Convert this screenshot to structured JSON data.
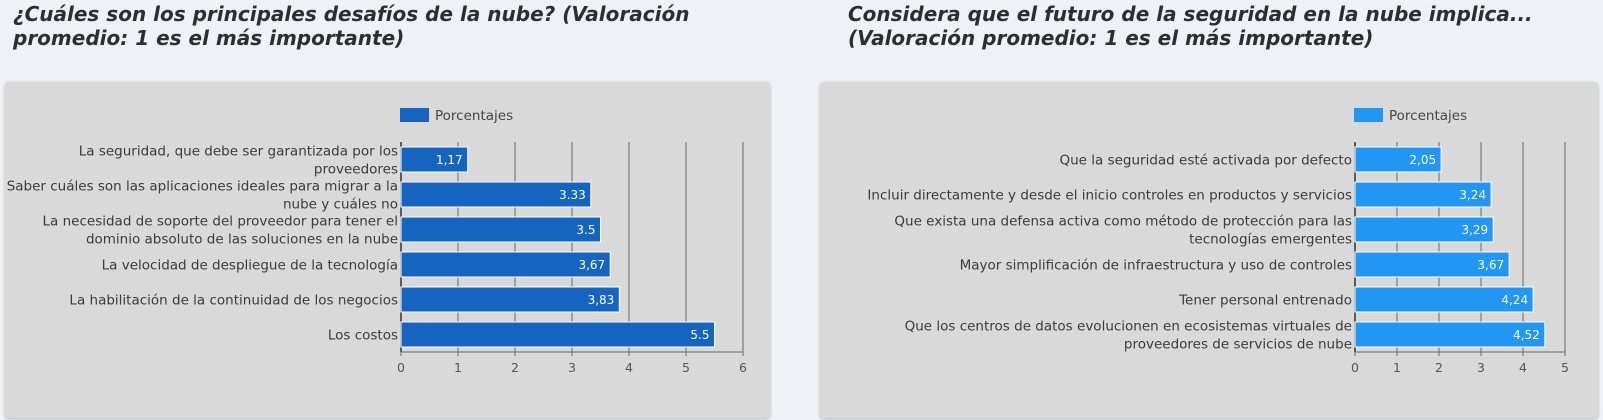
{
  "chart_data": [
    {
      "type": "bar",
      "orientation": "horizontal",
      "title": "¿Cuáles son los principales desafíos de la nube? (Valoración promedio: 1 es el más importante)",
      "categories": [
        [
          "La seguridad, que debe ser garantizada por los",
          "proveedores"
        ],
        [
          "Saber cuáles son las aplicaciones ideales para migrar a la",
          "nube y cuáles no"
        ],
        [
          "La necesidad de soporte del proveedor para tener el",
          "dominio absoluto de las soluciones en la nube"
        ],
        [
          "La velocidad de despliegue de la tecnología"
        ],
        [
          "La habilitación de la continuidad de los negocios"
        ],
        [
          "Los costos"
        ]
      ],
      "values": [
        1.17,
        3.33,
        3.5,
        3.67,
        3.83,
        5.5
      ],
      "value_labels": [
        "1,17",
        "3.33",
        "3.5",
        "3,67",
        "3,83",
        "5.5"
      ],
      "series": [
        {
          "name": "Porcentajes",
          "values": [
            1.17,
            3.33,
            3.5,
            3.67,
            3.83,
            5.5
          ]
        }
      ],
      "xlim": [
        0,
        6
      ],
      "ticks": [
        "0",
        "1",
        "2",
        "3",
        "4",
        "5",
        "6"
      ],
      "grid": true,
      "legend": "top-center",
      "color": "#1565c0"
    },
    {
      "type": "bar",
      "orientation": "horizontal",
      "title": "Considera que el futuro de la seguridad en la nube implica... (Valoración promedio: 1 es el más importante)",
      "categories": [
        [
          "Que la seguridad esté activada por defecto"
        ],
        [
          "Incluir directamente y desde el inicio controles en productos y servicios"
        ],
        [
          "Que exista una defensa activa como método de protección para las",
          "tecnologías emergentes"
        ],
        [
          "Mayor simplificación de infraestructura y uso de controles"
        ],
        [
          "Tener personal entrenado"
        ],
        [
          "Que los centros de datos evolucionen en ecosistemas virtuales de",
          "proveedores de servicios de nube"
        ]
      ],
      "values": [
        2.05,
        3.24,
        3.29,
        3.67,
        4.24,
        4.52
      ],
      "value_labels": [
        "2,05",
        "3,24",
        "3,29",
        "3,67",
        "4,24",
        "4,52"
      ],
      "series": [
        {
          "name": "Porcentajes",
          "values": [
            2.05,
            3.24,
            3.29,
            3.67,
            4.24,
            4.52
          ]
        }
      ],
      "xlim": [
        0,
        5
      ],
      "ticks": [
        "0",
        "1",
        "2",
        "3",
        "4",
        "5"
      ],
      "grid": true,
      "legend": "top-center",
      "color": "#2196f3"
    }
  ]
}
